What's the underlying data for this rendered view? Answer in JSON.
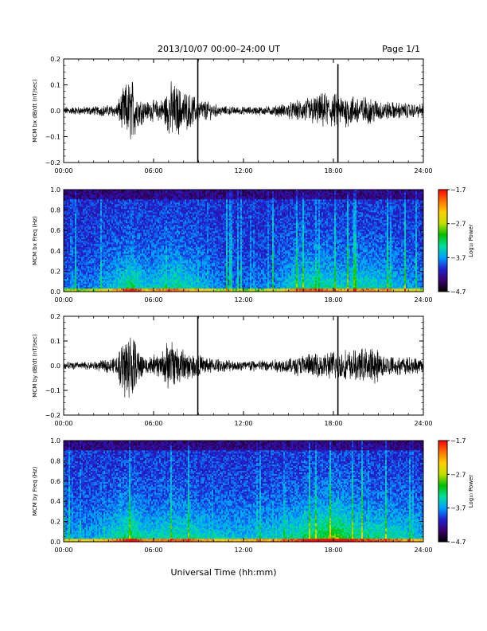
{
  "header": {
    "title": "2013/10/07  00:00–24:00 UT",
    "page_label": "Page 1/1"
  },
  "footer": {
    "xlabel": "Universal Time (hh:mm)"
  },
  "colors": {
    "trace": "#000000",
    "colorbar_stops": [
      "#000000",
      "#3a0070",
      "#2020d0",
      "#00a0ff",
      "#00e0a0",
      "#00c000",
      "#c0e000",
      "#ffd000",
      "#ff7000",
      "#ff0000"
    ]
  },
  "chart_data": [
    {
      "id": "bx-dbdt",
      "type": "line",
      "ylabel": "MCM bx dB/dt (nT/sec)",
      "x_ticks": [
        "00:00",
        "06:00",
        "12:00",
        "18:00",
        "24:00"
      ],
      "y_ticks": [
        "0.2",
        "0.1",
        "0.0",
        "−0.1",
        "−0.2"
      ],
      "ylim": [
        -0.2,
        0.2
      ],
      "xlim_hours": [
        0,
        24
      ],
      "envelope": {
        "hours": [
          0,
          2,
          3.5,
          4.2,
          4.6,
          5.0,
          5.5,
          6.5,
          7.2,
          7.8,
          8.5,
          9.0,
          10.5,
          12,
          14,
          15.5,
          16.5,
          17.5,
          18.5,
          19.5,
          20.5,
          21.5,
          22.5,
          24
        ],
        "amplitude": [
          0.012,
          0.014,
          0.02,
          0.09,
          0.1,
          0.05,
          0.03,
          0.035,
          0.09,
          0.07,
          0.05,
          0.04,
          0.015,
          0.012,
          0.015,
          0.03,
          0.045,
          0.055,
          0.05,
          0.05,
          0.04,
          0.03,
          0.025,
          0.02
        ]
      },
      "spikes": [
        {
          "hour": 8.95,
          "min": -0.2,
          "max": 0.2
        },
        {
          "hour": 18.3,
          "min": -0.2,
          "max": 0.18
        }
      ]
    },
    {
      "id": "bx-spectrogram",
      "type": "heatmap",
      "ylabel": "MCM bx Freq (Hz)",
      "x_ticks": [
        "00:00",
        "06:00",
        "12:00",
        "18:00",
        "24:00"
      ],
      "y_ticks": [
        "1.0",
        "0.8",
        "0.6",
        "0.4",
        "0.2",
        "0.0"
      ],
      "ylim": [
        0,
        1.0
      ],
      "colorbar": {
        "label": "Log₁₀ Power",
        "ticks": [
          "−1.7",
          "−2.7",
          "−3.7",
          "−4.7"
        ],
        "range": [
          -4.7,
          -1.7
        ]
      },
      "activity": {
        "hours": [
          0,
          2,
          4,
          4.5,
          5.5,
          7.5,
          9,
          10.5,
          12,
          14,
          15.5,
          17,
          18.5,
          20,
          21.5,
          24
        ],
        "level": [
          0.15,
          0.2,
          0.45,
          0.6,
          0.35,
          0.5,
          0.35,
          0.2,
          0.15,
          0.2,
          0.45,
          0.5,
          0.4,
          0.45,
          0.4,
          0.2
        ]
      }
    },
    {
      "id": "by-dbdt",
      "type": "line",
      "ylabel": "MCM by dB/dt (nT/sec)",
      "x_ticks": [
        "00:00",
        "06:00",
        "12:00",
        "18:00",
        "24:00"
      ],
      "y_ticks": [
        "0.2",
        "0.1",
        "0.0",
        "−0.1",
        "−0.2"
      ],
      "ylim": [
        -0.2,
        0.2
      ],
      "xlim_hours": [
        0,
        24
      ],
      "envelope": {
        "hours": [
          0,
          2,
          3.5,
          4.0,
          4.4,
          4.9,
          5.5,
          6.5,
          7.2,
          7.7,
          8.5,
          9.0,
          10.5,
          12,
          14,
          15.5,
          16.5,
          17.5,
          18.5,
          19.5,
          20.5,
          21.5,
          22.5,
          24
        ],
        "amplitude": [
          0.012,
          0.014,
          0.025,
          0.1,
          0.13,
          0.06,
          0.03,
          0.04,
          0.1,
          0.07,
          0.04,
          0.035,
          0.02,
          0.018,
          0.02,
          0.03,
          0.04,
          0.045,
          0.05,
          0.05,
          0.06,
          0.04,
          0.03,
          0.025
        ]
      },
      "spikes": [
        {
          "hour": 8.95,
          "min": -0.2,
          "max": 0.2
        },
        {
          "hour": 18.3,
          "min": -0.2,
          "max": 0.2
        }
      ]
    },
    {
      "id": "by-spectrogram",
      "type": "heatmap",
      "ylabel": "MCM by Freq (Hz)",
      "x_ticks": [
        "00:00",
        "06:00",
        "12:00",
        "18:00",
        "24:00"
      ],
      "y_ticks": [
        "1.0",
        "0.8",
        "0.6",
        "0.4",
        "0.2",
        "0.0"
      ],
      "ylim": [
        0,
        1.0
      ],
      "colorbar": {
        "label": "Log₁₀ Power",
        "ticks": [
          "−1.7",
          "−2.7",
          "−3.7",
          "−4.7"
        ],
        "range": [
          -4.7,
          -1.7
        ]
      },
      "activity": {
        "hours": [
          0,
          2,
          4,
          4.5,
          5.5,
          7.5,
          9,
          10.5,
          12,
          14,
          15.5,
          16.5,
          17.5,
          18.2,
          19,
          20,
          21.5,
          24
        ],
        "level": [
          0.25,
          0.3,
          0.5,
          0.65,
          0.4,
          0.5,
          0.45,
          0.35,
          0.35,
          0.4,
          0.5,
          0.6,
          0.7,
          0.8,
          0.6,
          0.5,
          0.5,
          0.35
        ]
      }
    }
  ]
}
